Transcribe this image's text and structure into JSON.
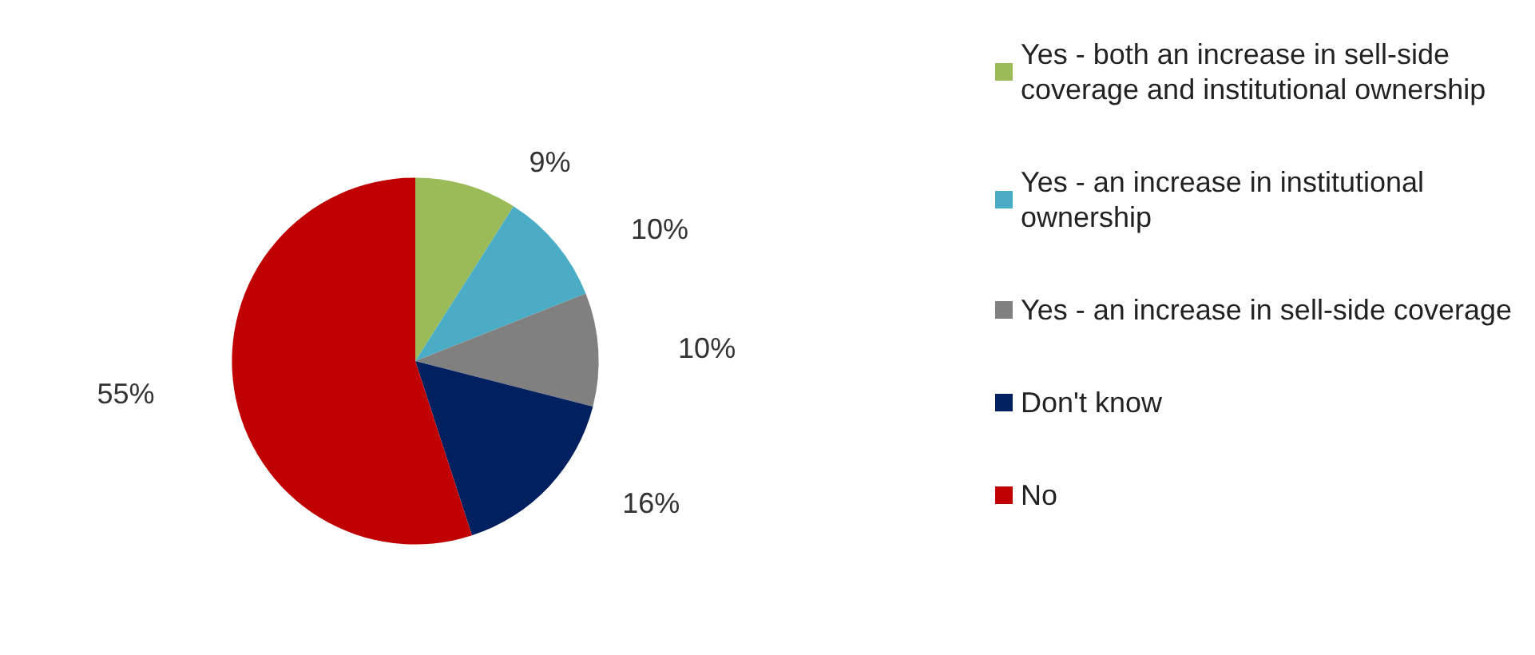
{
  "chart_data": {
    "type": "pie",
    "categories": [
      "Yes - both an increase in sell-side coverage and institutional ownership",
      "Yes - an increase in institutional ownership",
      "Yes - an increase in sell-side coverage",
      "Don't know",
      "No"
    ],
    "values": [
      9,
      10,
      10,
      16,
      55
    ],
    "colors": [
      "#9bbb59",
      "#4bacc6",
      "#808080",
      "#002060",
      "#c00000"
    ],
    "value_labels": [
      "9%",
      "10%",
      "10%",
      "16%",
      "55%"
    ],
    "legend": "right"
  }
}
